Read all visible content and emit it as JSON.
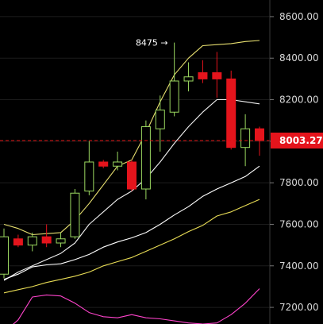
{
  "chart_data": {
    "type": "candlestick",
    "ylim": [
      7120,
      8680
    ],
    "y_ticks": [
      "8600.00",
      "8400.00",
      "8200.00",
      "8000.00",
      "7800.00",
      "7600.00",
      "7400.00",
      "7200.00"
    ],
    "y_tick_values": [
      8600,
      8400,
      8200,
      8000,
      7800,
      7600,
      7400,
      7200
    ],
    "current_price": 8003.27,
    "current_price_label": "8003.27",
    "annotation": {
      "text": "8475 →",
      "value": 8475
    },
    "candles": [
      {
        "open": 7360,
        "high": 7580,
        "low": 7340,
        "close": 7540
      },
      {
        "open": 7530,
        "high": 7550,
        "low": 7490,
        "close": 7500
      },
      {
        "open": 7500,
        "high": 7560,
        "low": 7470,
        "close": 7540
      },
      {
        "open": 7540,
        "high": 7600,
        "low": 7490,
        "close": 7510
      },
      {
        "open": 7510,
        "high": 7560,
        "low": 7490,
        "close": 7530
      },
      {
        "open": 7540,
        "high": 7770,
        "low": 7530,
        "close": 7750
      },
      {
        "open": 7760,
        "high": 8000,
        "low": 7740,
        "close": 7900
      },
      {
        "open": 7900,
        "high": 7910,
        "low": 7870,
        "close": 7880
      },
      {
        "open": 7880,
        "high": 7950,
        "low": 7860,
        "close": 7900
      },
      {
        "open": 7900,
        "high": 7910,
        "low": 7760,
        "close": 7770
      },
      {
        "open": 7770,
        "high": 8100,
        "low": 7720,
        "close": 8070
      },
      {
        "open": 8060,
        "high": 8220,
        "low": 7950,
        "close": 8150
      },
      {
        "open": 8140,
        "high": 8475,
        "low": 8120,
        "close": 8290
      },
      {
        "open": 8290,
        "high": 8380,
        "low": 8240,
        "close": 8310
      },
      {
        "open": 8330,
        "high": 8390,
        "low": 8280,
        "close": 8300
      },
      {
        "open": 8330,
        "high": 8430,
        "low": 8210,
        "close": 8300
      },
      {
        "open": 8300,
        "high": 8340,
        "low": 7960,
        "close": 7970
      },
      {
        "open": 7970,
        "high": 8130,
        "low": 7880,
        "close": 8060
      },
      {
        "open": 8060,
        "high": 8070,
        "low": 7930,
        "close": 8003.27
      }
    ],
    "series": [
      {
        "color": "#e8e070",
        "values": [
          7600,
          7580,
          7550,
          7555,
          7560,
          7620,
          7700,
          7790,
          7880,
          7910,
          8040,
          8190,
          8320,
          8400,
          8460,
          8465,
          8470,
          8480,
          8485
        ]
      },
      {
        "color": "#f0f0f0",
        "values": [
          7330,
          7370,
          7400,
          7430,
          7460,
          7510,
          7600,
          7660,
          7720,
          7760,
          7820,
          7900,
          7990,
          8070,
          8140,
          8200,
          8200,
          8190,
          8180
        ]
      },
      {
        "color": "#ffffff",
        "values": [
          7335,
          7360,
          7395,
          7405,
          7410,
          7430,
          7455,
          7490,
          7515,
          7535,
          7560,
          7600,
          7645,
          7685,
          7735,
          7770,
          7800,
          7830,
          7880
        ]
      },
      {
        "color": "#e8dc55",
        "values": [
          7270,
          7285,
          7300,
          7320,
          7335,
          7350,
          7370,
          7400,
          7420,
          7440,
          7470,
          7500,
          7530,
          7565,
          7595,
          7640,
          7660,
          7690,
          7720
        ]
      },
      {
        "color": "#ff44cc",
        "values": [
          7080,
          7140,
          7250,
          7260,
          7255,
          7220,
          7175,
          7155,
          7150,
          7165,
          7150,
          7145,
          7135,
          7125,
          7120,
          7125,
          7165,
          7220,
          7290
        ]
      }
    ],
    "colors": {
      "up": "#9bd860",
      "down": "#e4141c",
      "price_line": "#e01010",
      "background": "#000000"
    }
  }
}
